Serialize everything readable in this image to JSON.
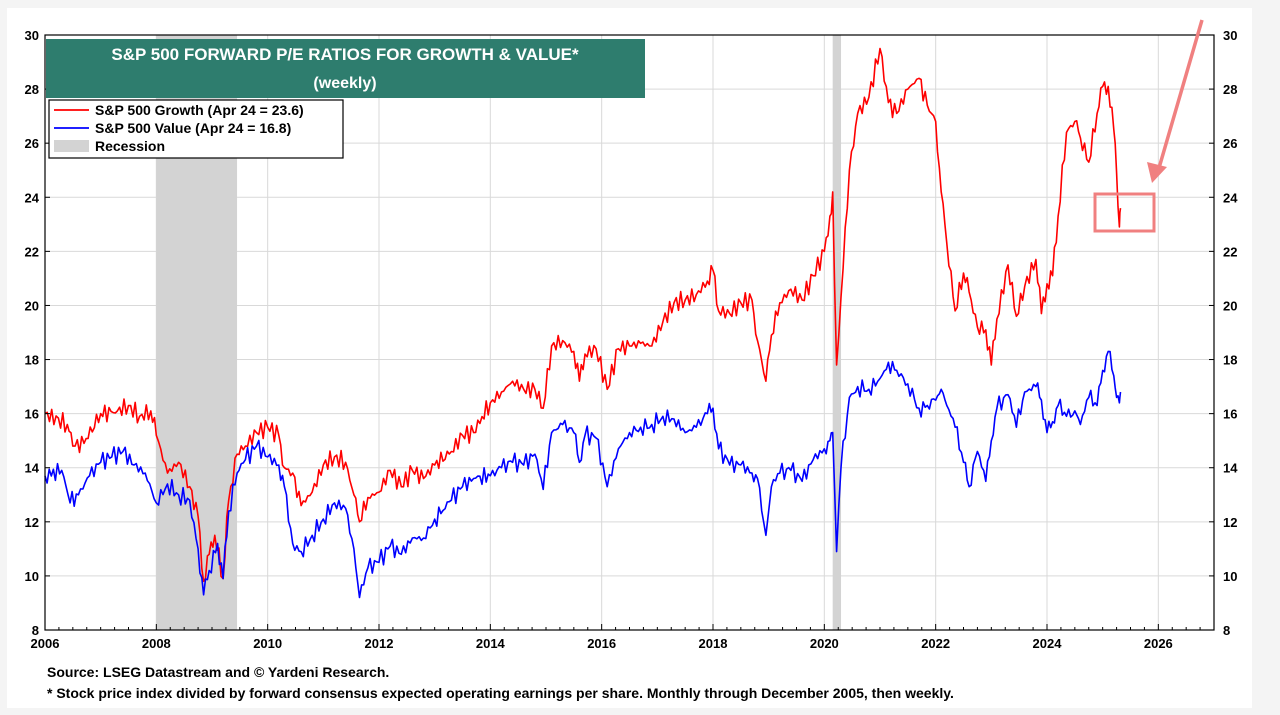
{
  "chart_data": {
    "type": "line",
    "title": "S&P 500 FORWARD P/E RATIOS FOR GROWTH & VALUE*",
    "subtitle": "(weekly)",
    "xlim": [
      2006,
      2027
    ],
    "ylim": [
      8,
      30
    ],
    "x_ticks": [
      "2006",
      "2008",
      "2010",
      "2012",
      "2014",
      "2016",
      "2018",
      "2020",
      "2022",
      "2024",
      "2026"
    ],
    "y_ticks": [
      "8",
      "10",
      "12",
      "14",
      "16",
      "18",
      "20",
      "22",
      "24",
      "26",
      "28",
      "30"
    ],
    "grid": true,
    "legend_position": "top-left",
    "recession_label": "Recession",
    "recessions": [
      [
        2008.0,
        2009.45
      ],
      [
        2020.15,
        2020.3
      ]
    ],
    "series": [
      {
        "name": "S&P 500 Growth (Apr 24 = 23.6)",
        "color": "#ff0000",
        "points": [
          [
            2006.0,
            16.0
          ],
          [
            2006.4,
            15.6
          ],
          [
            2006.5,
            14.8
          ],
          [
            2006.7,
            14.9
          ],
          [
            2007.0,
            16.0
          ],
          [
            2007.3,
            16.1
          ],
          [
            2007.5,
            16.3
          ],
          [
            2007.7,
            15.9
          ],
          [
            2007.9,
            16.1
          ],
          [
            2008.0,
            15.2
          ],
          [
            2008.2,
            13.8
          ],
          [
            2008.4,
            14.2
          ],
          [
            2008.6,
            13.3
          ],
          [
            2008.75,
            12.2
          ],
          [
            2008.85,
            9.8
          ],
          [
            2008.95,
            10.8
          ],
          [
            2009.05,
            11.5
          ],
          [
            2009.2,
            9.9
          ],
          [
            2009.3,
            12.8
          ],
          [
            2009.45,
            14.5
          ],
          [
            2009.6,
            14.8
          ],
          [
            2009.8,
            15.3
          ],
          [
            2010.0,
            15.5
          ],
          [
            2010.2,
            15.2
          ],
          [
            2010.3,
            14.0
          ],
          [
            2010.45,
            13.8
          ],
          [
            2010.6,
            12.6
          ],
          [
            2010.8,
            13.1
          ],
          [
            2011.0,
            14.1
          ],
          [
            2011.2,
            14.4
          ],
          [
            2011.4,
            14.2
          ],
          [
            2011.55,
            13.0
          ],
          [
            2011.65,
            12.0
          ],
          [
            2011.8,
            12.9
          ],
          [
            2012.0,
            13.1
          ],
          [
            2012.2,
            13.9
          ],
          [
            2012.4,
            13.3
          ],
          [
            2012.6,
            13.9
          ],
          [
            2012.8,
            13.6
          ],
          [
            2013.0,
            14.1
          ],
          [
            2013.3,
            14.6
          ],
          [
            2013.5,
            15.2
          ],
          [
            2013.7,
            15.3
          ],
          [
            2014.0,
            16.4
          ],
          [
            2014.2,
            16.8
          ],
          [
            2014.4,
            17.2
          ],
          [
            2014.6,
            16.9
          ],
          [
            2014.8,
            16.9
          ],
          [
            2014.95,
            16.2
          ],
          [
            2015.1,
            18.5
          ],
          [
            2015.3,
            18.7
          ],
          [
            2015.5,
            18.3
          ],
          [
            2015.6,
            17.2
          ],
          [
            2015.7,
            18.2
          ],
          [
            2015.9,
            18.4
          ],
          [
            2016.1,
            16.9
          ],
          [
            2016.3,
            18.4
          ],
          [
            2016.5,
            18.5
          ],
          [
            2016.7,
            18.6
          ],
          [
            2016.9,
            18.5
          ],
          [
            2017.1,
            19.4
          ],
          [
            2017.3,
            20.1
          ],
          [
            2017.5,
            20.2
          ],
          [
            2017.7,
            20.4
          ],
          [
            2017.9,
            20.9
          ],
          [
            2018.0,
            21.3
          ],
          [
            2018.1,
            19.8
          ],
          [
            2018.3,
            19.7
          ],
          [
            2018.5,
            20.1
          ],
          [
            2018.7,
            20.2
          ],
          [
            2018.8,
            18.7
          ],
          [
            2018.95,
            17.2
          ],
          [
            2019.05,
            18.9
          ],
          [
            2019.2,
            20.1
          ],
          [
            2019.4,
            20.6
          ],
          [
            2019.6,
            20.2
          ],
          [
            2019.8,
            21.1
          ],
          [
            2020.0,
            22.0
          ],
          [
            2020.1,
            23.3
          ],
          [
            2020.15,
            24.2
          ],
          [
            2020.22,
            17.8
          ],
          [
            2020.3,
            20.3
          ],
          [
            2020.45,
            25.0
          ],
          [
            2020.6,
            27.1
          ],
          [
            2020.8,
            27.7
          ],
          [
            2021.0,
            29.5
          ],
          [
            2021.15,
            27.5
          ],
          [
            2021.3,
            27.1
          ],
          [
            2021.5,
            28.0
          ],
          [
            2021.7,
            28.4
          ],
          [
            2021.85,
            27.4
          ],
          [
            2022.0,
            26.8
          ],
          [
            2022.1,
            24.2
          ],
          [
            2022.2,
            22.3
          ],
          [
            2022.35,
            19.8
          ],
          [
            2022.5,
            21.2
          ],
          [
            2022.6,
            20.5
          ],
          [
            2022.75,
            19.2
          ],
          [
            2022.9,
            19.1
          ],
          [
            2023.0,
            17.8
          ],
          [
            2023.1,
            19.5
          ],
          [
            2023.3,
            21.5
          ],
          [
            2023.45,
            19.6
          ],
          [
            2023.6,
            20.7
          ],
          [
            2023.8,
            21.7
          ],
          [
            2023.9,
            19.7
          ],
          [
            2024.0,
            20.8
          ],
          [
            2024.1,
            21.1
          ],
          [
            2024.2,
            23.3
          ],
          [
            2024.35,
            26.4
          ],
          [
            2024.5,
            26.8
          ],
          [
            2024.6,
            26.2
          ],
          [
            2024.75,
            25.3
          ],
          [
            2024.9,
            27.1
          ],
          [
            2025.0,
            28.1
          ],
          [
            2025.1,
            28.1
          ],
          [
            2025.2,
            26.5
          ],
          [
            2025.25,
            24.9
          ],
          [
            2025.3,
            22.9
          ],
          [
            2025.32,
            23.6
          ]
        ]
      },
      {
        "name": "S&P 500 Value (Apr 24 = 16.8)",
        "color": "#0000ff",
        "points": [
          [
            2006.0,
            13.7
          ],
          [
            2006.3,
            13.9
          ],
          [
            2006.45,
            12.7
          ],
          [
            2006.6,
            13.0
          ],
          [
            2006.8,
            13.7
          ],
          [
            2007.0,
            14.2
          ],
          [
            2007.2,
            14.4
          ],
          [
            2007.4,
            14.6
          ],
          [
            2007.6,
            14.1
          ],
          [
            2007.8,
            13.8
          ],
          [
            2008.0,
            12.7
          ],
          [
            2008.2,
            13.4
          ],
          [
            2008.4,
            13.0
          ],
          [
            2008.6,
            12.8
          ],
          [
            2008.75,
            11.0
          ],
          [
            2008.85,
            9.3
          ],
          [
            2008.95,
            10.2
          ],
          [
            2009.1,
            11.2
          ],
          [
            2009.2,
            9.9
          ],
          [
            2009.3,
            12.4
          ],
          [
            2009.45,
            13.8
          ],
          [
            2009.6,
            14.3
          ],
          [
            2009.8,
            14.8
          ],
          [
            2010.0,
            14.4
          ],
          [
            2010.2,
            14.1
          ],
          [
            2010.3,
            13.3
          ],
          [
            2010.45,
            11.2
          ],
          [
            2010.6,
            10.9
          ],
          [
            2010.8,
            11.5
          ],
          [
            2011.0,
            12.1
          ],
          [
            2011.2,
            12.7
          ],
          [
            2011.4,
            12.5
          ],
          [
            2011.55,
            11.0
          ],
          [
            2011.65,
            9.2
          ],
          [
            2011.8,
            10.3
          ],
          [
            2012.0,
            10.5
          ],
          [
            2012.2,
            11.1
          ],
          [
            2012.4,
            10.8
          ],
          [
            2012.6,
            11.4
          ],
          [
            2012.8,
            11.4
          ],
          [
            2013.0,
            12.1
          ],
          [
            2013.3,
            12.8
          ],
          [
            2013.5,
            13.3
          ],
          [
            2013.7,
            13.6
          ],
          [
            2014.0,
            13.7
          ],
          [
            2014.2,
            14.0
          ],
          [
            2014.4,
            14.2
          ],
          [
            2014.6,
            14.1
          ],
          [
            2014.8,
            14.5
          ],
          [
            2014.95,
            13.2
          ],
          [
            2015.1,
            15.3
          ],
          [
            2015.3,
            15.6
          ],
          [
            2015.5,
            15.3
          ],
          [
            2015.6,
            14.2
          ],
          [
            2015.7,
            15.2
          ],
          [
            2015.9,
            15.1
          ],
          [
            2016.1,
            13.3
          ],
          [
            2016.3,
            14.7
          ],
          [
            2016.5,
            15.3
          ],
          [
            2016.7,
            15.5
          ],
          [
            2016.9,
            15.6
          ],
          [
            2017.1,
            15.9
          ],
          [
            2017.3,
            15.8
          ],
          [
            2017.5,
            15.3
          ],
          [
            2017.7,
            15.5
          ],
          [
            2017.9,
            16.0
          ],
          [
            2018.0,
            16.2
          ],
          [
            2018.1,
            14.7
          ],
          [
            2018.3,
            14.1
          ],
          [
            2018.5,
            14.1
          ],
          [
            2018.7,
            13.8
          ],
          [
            2018.8,
            13.6
          ],
          [
            2018.95,
            11.5
          ],
          [
            2019.05,
            13.3
          ],
          [
            2019.2,
            13.8
          ],
          [
            2019.4,
            13.9
          ],
          [
            2019.6,
            13.5
          ],
          [
            2019.8,
            14.3
          ],
          [
            2020.0,
            14.7
          ],
          [
            2020.1,
            15.0
          ],
          [
            2020.15,
            15.3
          ],
          [
            2020.22,
            10.9
          ],
          [
            2020.3,
            14.0
          ],
          [
            2020.45,
            16.6
          ],
          [
            2020.6,
            17.0
          ],
          [
            2020.8,
            16.9
          ],
          [
            2021.0,
            17.3
          ],
          [
            2021.15,
            17.9
          ],
          [
            2021.3,
            17.6
          ],
          [
            2021.5,
            17.1
          ],
          [
            2021.7,
            16.2
          ],
          [
            2021.85,
            16.3
          ],
          [
            2022.0,
            16.5
          ],
          [
            2022.1,
            16.9
          ],
          [
            2022.2,
            16.3
          ],
          [
            2022.35,
            15.5
          ],
          [
            2022.5,
            14.2
          ],
          [
            2022.6,
            13.3
          ],
          [
            2022.75,
            14.6
          ],
          [
            2022.9,
            13.5
          ],
          [
            2023.0,
            15.0
          ],
          [
            2023.1,
            16.2
          ],
          [
            2023.3,
            16.7
          ],
          [
            2023.45,
            15.5
          ],
          [
            2023.6,
            16.8
          ],
          [
            2023.8,
            17.0
          ],
          [
            2023.9,
            16.5
          ],
          [
            2024.0,
            15.3
          ],
          [
            2024.1,
            15.7
          ],
          [
            2024.2,
            16.3
          ],
          [
            2024.35,
            15.9
          ],
          [
            2024.5,
            16.1
          ],
          [
            2024.6,
            15.6
          ],
          [
            2024.75,
            16.6
          ],
          [
            2024.9,
            16.3
          ],
          [
            2025.0,
            17.6
          ],
          [
            2025.1,
            18.3
          ],
          [
            2025.2,
            17.4
          ],
          [
            2025.25,
            16.6
          ],
          [
            2025.3,
            16.4
          ],
          [
            2025.32,
            16.8
          ]
        ]
      }
    ]
  },
  "footnotes": {
    "source": "Source: LSEG Datastream and © Yardeni Research.",
    "note": "* Stock price index divided by forward consensus expected operating earnings per share. Monthly through December 2005, then weekly."
  },
  "annotation_color": "#f08080"
}
